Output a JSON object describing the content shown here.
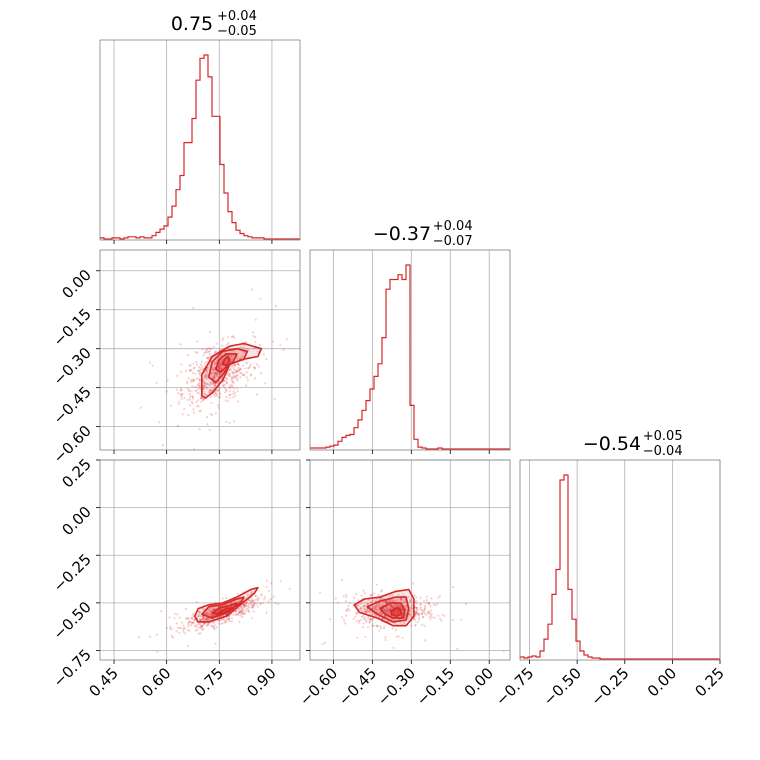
{
  "chart_data": {
    "type": "corner",
    "color": "#d62728",
    "parameters": [
      {
        "index": 0,
        "median": 0.75,
        "title": "0.75",
        "sup": "+0.04",
        "sub": "−0.05",
        "range": [
          0.41,
          0.98
        ],
        "ticks": [
          0.45,
          0.6,
          0.75,
          0.9
        ],
        "tick_labels": [
          "0.45",
          "0.60",
          "0.75",
          "0.90"
        ],
        "hist": {
          "start": 0.41,
          "step": 0.0114,
          "counts": [
            1,
            0,
            0,
            1,
            1,
            0,
            1,
            2,
            2,
            1,
            2,
            1,
            1,
            3,
            6,
            9,
            12,
            20,
            30,
            45,
            58,
            88,
            88,
            110,
            145,
            165,
            168,
            148,
            112,
            112,
            68,
            42,
            25,
            15,
            8,
            5,
            3,
            2,
            1,
            1,
            1,
            0,
            0,
            0,
            0,
            0,
            0,
            0,
            0,
            0
          ]
        }
      },
      {
        "index": 1,
        "median": -0.37,
        "title": "−0.37",
        "sup": "+0.04",
        "sub": "−0.07",
        "range": [
          -0.69,
          0.08
        ],
        "ticks": [
          -0.6,
          -0.45,
          -0.3,
          -0.15,
          0.0
        ],
        "tick_labels": [
          "−0.60",
          "−0.45",
          "−0.30",
          "−0.15",
          "0.00"
        ],
        "tick_labels_left": [
          "0.00",
          "−0.15",
          "−0.30",
          "−0.45",
          "−0.60"
        ],
        "hist": {
          "start": -0.69,
          "step": 0.0154,
          "counts": [
            1,
            1,
            1,
            1,
            2,
            3,
            4,
            8,
            12,
            14,
            15,
            22,
            30,
            40,
            50,
            62,
            75,
            88,
            115,
            165,
            175,
            175,
            180,
            175,
            190,
            45,
            10,
            2,
            1,
            0,
            0,
            0,
            1,
            0,
            0,
            0,
            0,
            0,
            0,
            0,
            0,
            0,
            0,
            0,
            0,
            0,
            0,
            0,
            0,
            0
          ]
        }
      },
      {
        "index": 2,
        "median": -0.54,
        "title": "−0.54",
        "sup": "+0.05",
        "sub": "−0.04",
        "range": [
          -0.8,
          0.25
        ],
        "ticks": [
          -0.75,
          -0.5,
          -0.25,
          0.0,
          0.25
        ],
        "tick_labels": [
          "−0.75",
          "−0.50",
          "−0.25",
          "0.00",
          "0.25"
        ],
        "tick_labels_left": [
          "0.25",
          "0.00",
          "−0.25",
          "−0.50",
          "−0.75"
        ],
        "hist": {
          "start": -0.8,
          "step": 0.021,
          "counts": [
            2,
            1,
            2,
            3,
            2,
            8,
            20,
            35,
            65,
            90,
            180,
            185,
            70,
            40,
            18,
            8,
            4,
            2,
            1,
            1,
            0,
            0,
            0,
            0,
            0,
            0,
            0,
            0,
            0,
            0,
            0,
            0,
            0,
            0,
            0,
            0,
            0,
            0,
            0,
            0,
            0,
            0,
            0,
            0,
            0,
            0,
            0,
            0,
            0,
            0
          ]
        }
      }
    ],
    "pairs": [
      {
        "x_index": 0,
        "y_index": 1,
        "scatter_center": [
          0.745,
          -0.4
        ],
        "scatter_spread": [
          0.05,
          0.06
        ],
        "rho": 0.45,
        "contours": [
          {
            "level": "outer",
            "points": [
              [
                0.7,
                -0.48
              ],
              [
                0.7,
                -0.4
              ],
              [
                0.73,
                -0.33
              ],
              [
                0.78,
                -0.29
              ],
              [
                0.82,
                -0.28
              ],
              [
                0.87,
                -0.3
              ],
              [
                0.86,
                -0.33
              ],
              [
                0.82,
                -0.34
              ],
              [
                0.78,
                -0.36
              ],
              [
                0.76,
                -0.42
              ],
              [
                0.73,
                -0.47
              ],
              [
                0.71,
                -0.49
              ]
            ]
          },
          {
            "level": "mid",
            "points": [
              [
                0.72,
                -0.41
              ],
              [
                0.73,
                -0.35
              ],
              [
                0.76,
                -0.31
              ],
              [
                0.8,
                -0.3
              ],
              [
                0.83,
                -0.31
              ],
              [
                0.82,
                -0.34
              ],
              [
                0.78,
                -0.36
              ],
              [
                0.76,
                -0.4
              ],
              [
                0.74,
                -0.43
              ]
            ]
          },
          {
            "level": "inner",
            "points": [
              [
                0.74,
                -0.38
              ],
              [
                0.75,
                -0.34
              ],
              [
                0.77,
                -0.32
              ],
              [
                0.8,
                -0.32
              ],
              [
                0.79,
                -0.35
              ],
              [
                0.77,
                -0.37
              ],
              [
                0.755,
                -0.39
              ]
            ]
          },
          {
            "level": "core",
            "points": [
              [
                0.76,
                -0.36
              ],
              [
                0.765,
                -0.34
              ],
              [
                0.775,
                -0.33
              ],
              [
                0.78,
                -0.345
              ],
              [
                0.77,
                -0.365
              ]
            ]
          }
        ]
      },
      {
        "x_index": 0,
        "y_index": 2,
        "scatter_center": [
          0.76,
          -0.55
        ],
        "scatter_spread": [
          0.05,
          0.04
        ],
        "rho": 0.8,
        "contours": [
          {
            "level": "outer",
            "points": [
              [
                0.68,
                -0.57
              ],
              [
                0.69,
                -0.53
              ],
              [
                0.72,
                -0.51
              ],
              [
                0.76,
                -0.5
              ],
              [
                0.8,
                -0.47
              ],
              [
                0.84,
                -0.43
              ],
              [
                0.86,
                -0.42
              ],
              [
                0.85,
                -0.45
              ],
              [
                0.81,
                -0.51
              ],
              [
                0.77,
                -0.57
              ],
              [
                0.72,
                -0.6
              ],
              [
                0.69,
                -0.6
              ]
            ]
          },
          {
            "level": "mid",
            "points": [
              [
                0.7,
                -0.56
              ],
              [
                0.72,
                -0.52
              ],
              [
                0.76,
                -0.51
              ],
              [
                0.8,
                -0.48
              ],
              [
                0.82,
                -0.47
              ],
              [
                0.81,
                -0.5
              ],
              [
                0.77,
                -0.55
              ],
              [
                0.73,
                -0.58
              ]
            ]
          },
          {
            "level": "inner",
            "points": [
              [
                0.73,
                -0.555
              ],
              [
                0.75,
                -0.525
              ],
              [
                0.78,
                -0.515
              ],
              [
                0.8,
                -0.5
              ],
              [
                0.79,
                -0.53
              ],
              [
                0.76,
                -0.56
              ]
            ]
          },
          {
            "level": "core",
            "points": [
              [
                0.75,
                -0.55
              ],
              [
                0.77,
                -0.53
              ],
              [
                0.785,
                -0.525
              ],
              [
                0.78,
                -0.545
              ],
              [
                0.765,
                -0.555
              ]
            ]
          }
        ]
      },
      {
        "x_index": 1,
        "y_index": 2,
        "scatter_center": [
          -0.38,
          -0.54
        ],
        "scatter_spread": [
          0.07,
          0.04
        ],
        "rho": -0.1,
        "contours": [
          {
            "level": "outer",
            "points": [
              [
                -0.52,
                -0.51
              ],
              [
                -0.48,
                -0.48
              ],
              [
                -0.42,
                -0.47
              ],
              [
                -0.36,
                -0.44
              ],
              [
                -0.31,
                -0.43
              ],
              [
                -0.29,
                -0.48
              ],
              [
                -0.29,
                -0.57
              ],
              [
                -0.32,
                -0.62
              ],
              [
                -0.37,
                -0.62
              ],
              [
                -0.43,
                -0.58
              ],
              [
                -0.5,
                -0.55
              ]
            ]
          },
          {
            "level": "mid",
            "points": [
              [
                -0.47,
                -0.52
              ],
              [
                -0.42,
                -0.49
              ],
              [
                -0.36,
                -0.47
              ],
              [
                -0.32,
                -0.47
              ],
              [
                -0.31,
                -0.53
              ],
              [
                -0.32,
                -0.59
              ],
              [
                -0.37,
                -0.6
              ],
              [
                -0.43,
                -0.56
              ]
            ]
          },
          {
            "level": "inner",
            "points": [
              [
                -0.42,
                -0.53
              ],
              [
                -0.38,
                -0.5
              ],
              [
                -0.34,
                -0.5
              ],
              [
                -0.325,
                -0.54
              ],
              [
                -0.33,
                -0.58
              ],
              [
                -0.37,
                -0.58
              ],
              [
                -0.4,
                -0.56
              ]
            ]
          },
          {
            "level": "core",
            "points": [
              [
                -0.38,
                -0.545
              ],
              [
                -0.355,
                -0.525
              ],
              [
                -0.34,
                -0.535
              ],
              [
                -0.34,
                -0.56
              ],
              [
                -0.36,
                -0.57
              ],
              [
                -0.375,
                -0.56
              ]
            ]
          }
        ]
      }
    ]
  }
}
